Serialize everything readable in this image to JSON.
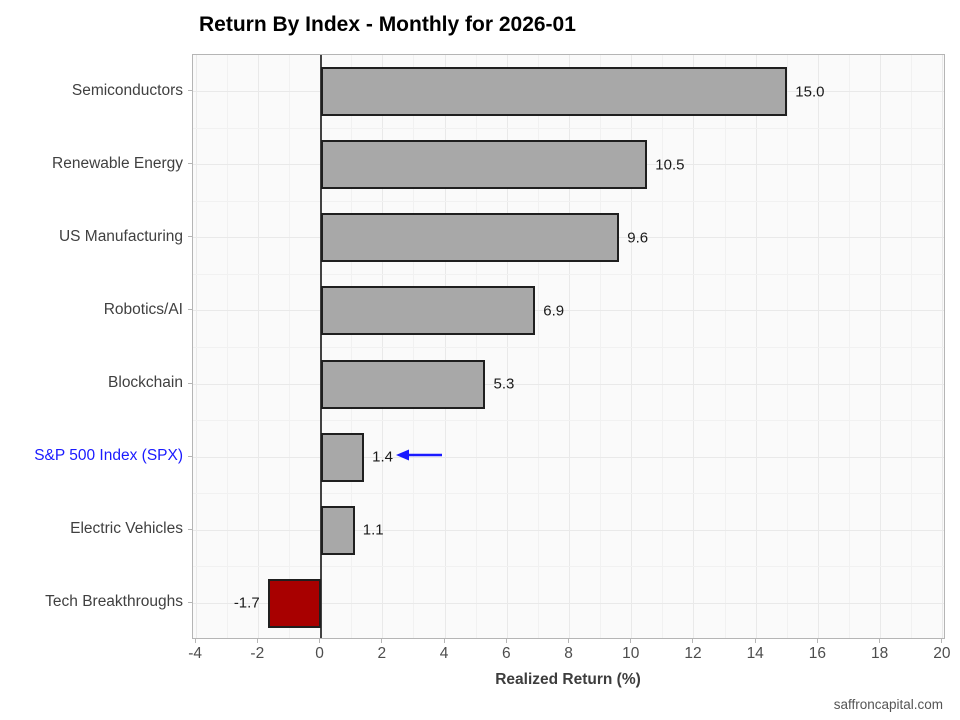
{
  "chart_data": {
    "type": "bar",
    "orientation": "horizontal",
    "title": "Return By Index - Monthly for 2026-01",
    "xlabel": "Realized Return (%)",
    "ylabel": "",
    "categories": [
      "Semiconductors",
      "Renewable Energy",
      "US Manufacturing",
      "Robotics/AI",
      "Blockchain",
      "S&P 500 Index (SPX)",
      "Electric Vehicles",
      "Tech Breakthroughs"
    ],
    "values": [
      15.0,
      10.5,
      9.6,
      6.9,
      5.3,
      1.4,
      1.1,
      -1.7
    ],
    "value_labels": [
      "15.0",
      "10.5",
      "9.6",
      "6.9",
      "5.3",
      "1.4",
      "1.1",
      "-1.7"
    ],
    "xlim": [
      -4.1,
      20.1
    ],
    "x_ticks": [
      -4,
      -2,
      0,
      2,
      4,
      6,
      8,
      10,
      12,
      14,
      16,
      18,
      20
    ],
    "grid": "major-and-minor",
    "legend": "none",
    "highlight": {
      "category": "S&P 500 Index (SPX)",
      "label_color": "#1a1aff",
      "annotation": "arrow-left",
      "arrow_color": "#1a1aff"
    },
    "colors": {
      "bar_positive": "#a8a8a8",
      "bar_negative": "#a80000",
      "bar_border": "#1f1f1f",
      "zero_line": "#424242"
    }
  },
  "footer": {
    "text": "saffroncapital.com"
  }
}
